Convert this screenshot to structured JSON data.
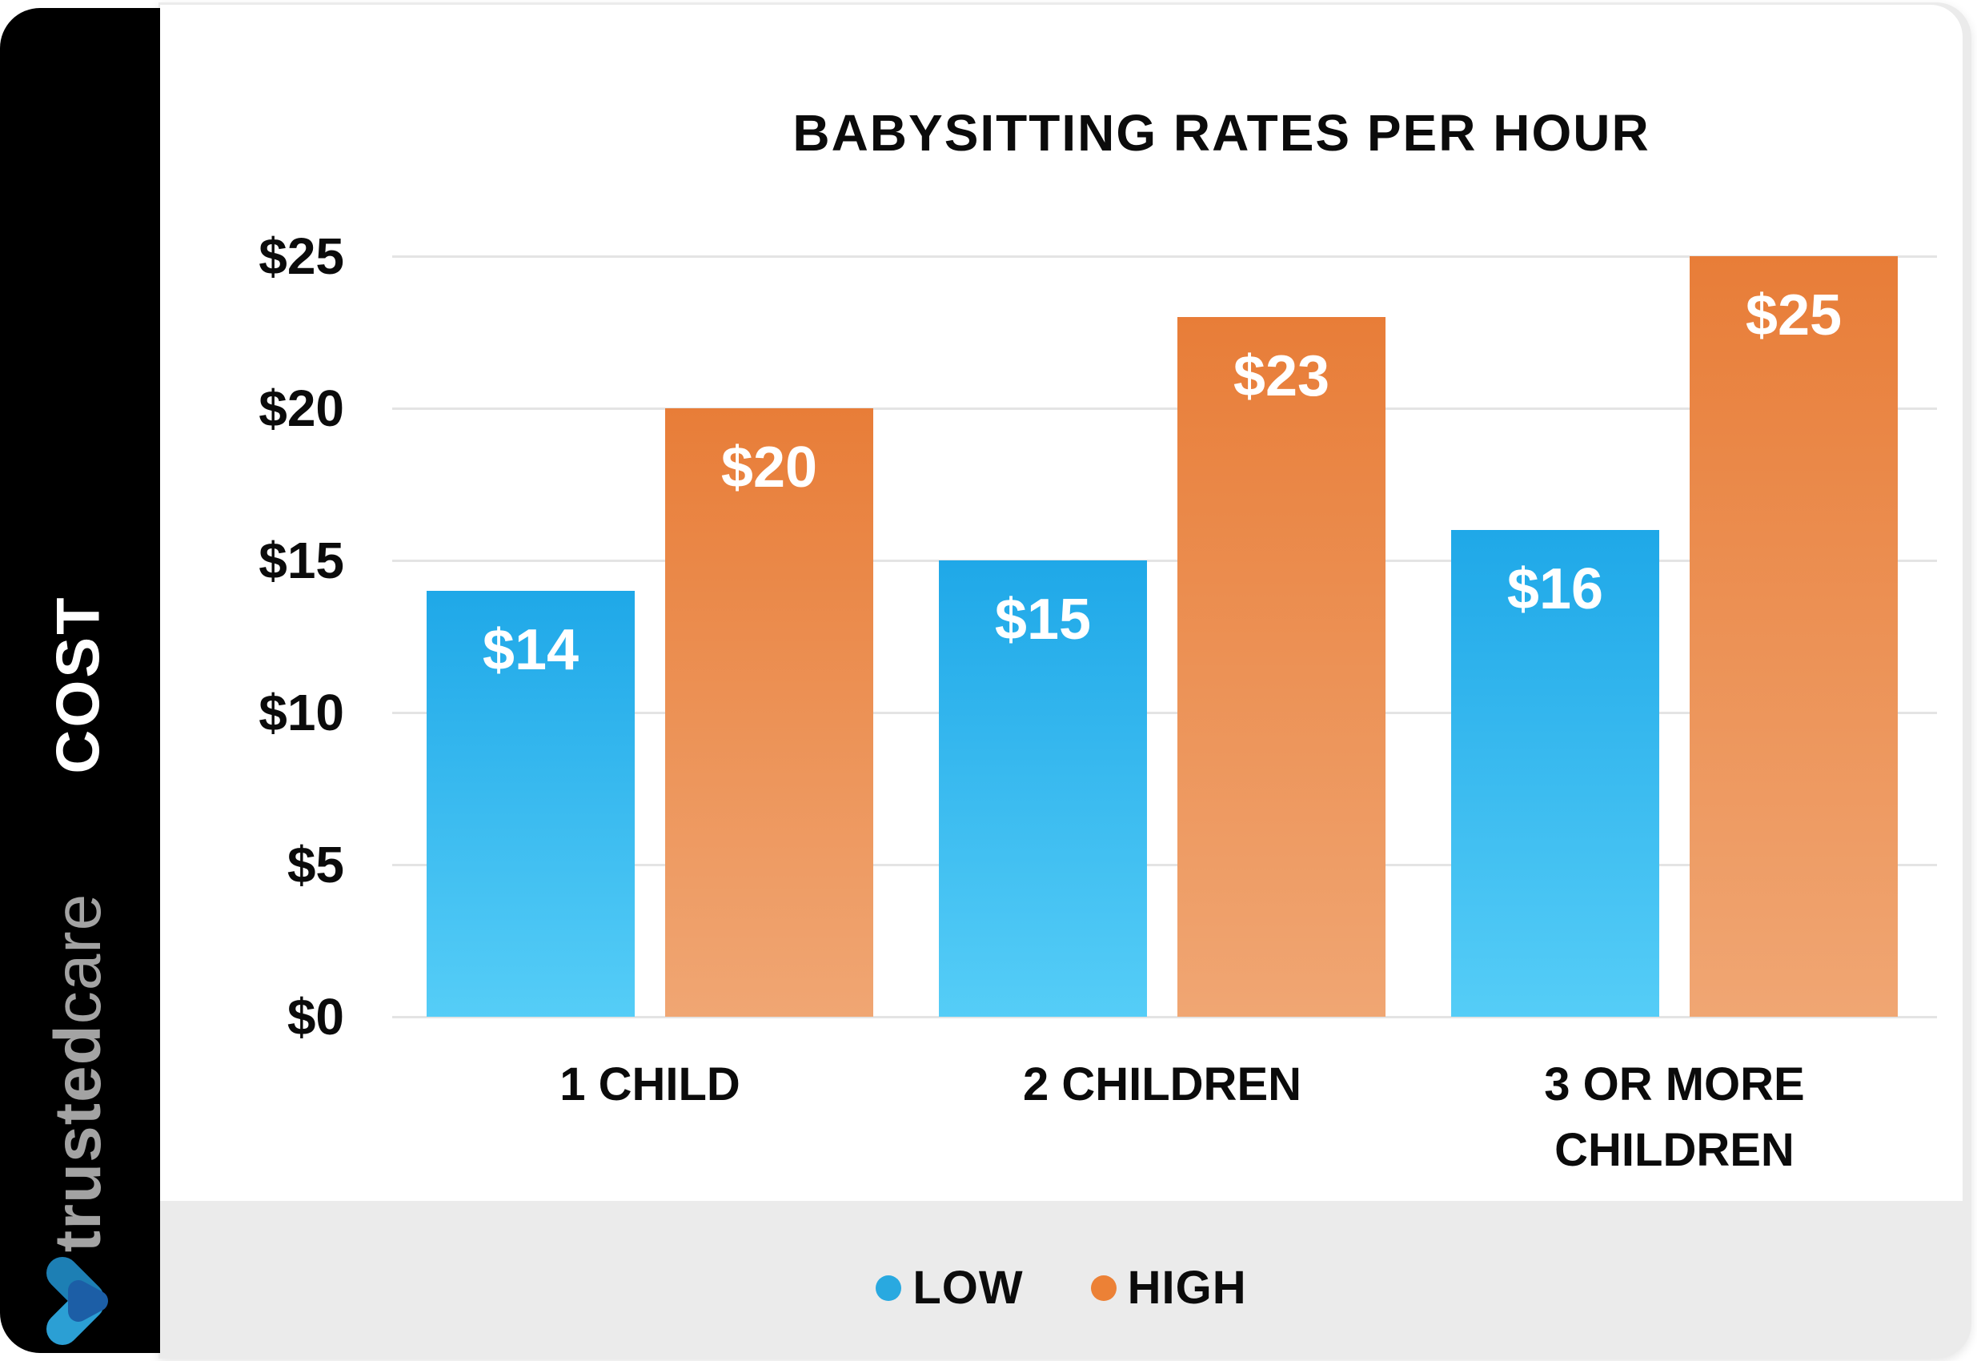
{
  "sidebar": {
    "axis_label": "COST",
    "brand_bold": "trusted",
    "brand_light": "care",
    "logo_colors": {
      "top_limb": "#1d7fb4",
      "bottom_limb": "#2b9fd4",
      "point": "#1c5ea6"
    }
  },
  "chart_data": {
    "type": "bar",
    "title": "BABYSITTING RATES PER HOUR",
    "categories": [
      "1 CHILD",
      "2 CHILDREN",
      "3 OR MORE\nCHILDREN"
    ],
    "series": [
      {
        "name": "LOW",
        "values": [
          14,
          15,
          16
        ],
        "color_top": "#1fa8e8",
        "color_bottom": "#55cdf7",
        "legend_dot": "#29a9e0"
      },
      {
        "name": "HIGH",
        "values": [
          20,
          23,
          25
        ],
        "color_top": "#e87d38",
        "color_bottom": "#f0a673",
        "legend_dot": "#ec8136"
      }
    ],
    "value_label_prefix": "$",
    "y_ticks": [
      "$0",
      "$5",
      "$10",
      "$15",
      "$20",
      "$25"
    ],
    "y_tick_step": 5,
    "ylim": [
      0,
      25
    ],
    "ylabel": "COST",
    "grid": true,
    "legend_position": "bottom",
    "colors": {
      "grid": "#e4e4e4",
      "text": "#0b0b0b",
      "card_bg": "#ffffff",
      "band_bg": "#ebebeb",
      "sidebar_bg": "#000000"
    }
  }
}
